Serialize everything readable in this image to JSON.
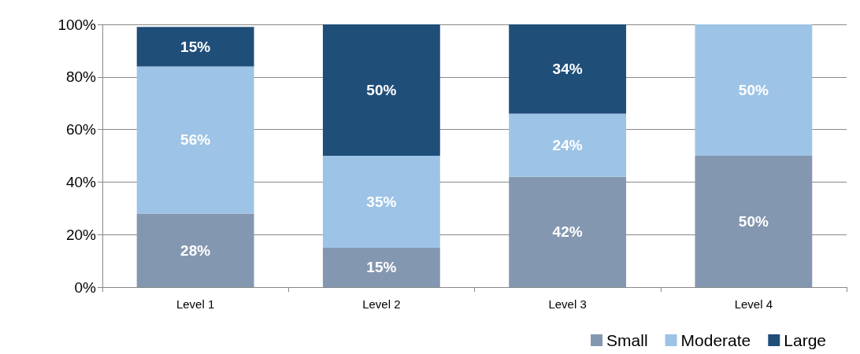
{
  "chart_data": {
    "type": "bar",
    "stacked": true,
    "categories": [
      "Level 1",
      "Level 2",
      "Level 3",
      "Level 4"
    ],
    "series": [
      {
        "name": "Small",
        "color": "#8497b0",
        "values": [
          28,
          15,
          42,
          50
        ],
        "value_labels": [
          "28%",
          "15%",
          "42%",
          "50%"
        ]
      },
      {
        "name": "Moderate",
        "color": "#9dc3e6",
        "values": [
          56,
          35,
          24,
          50
        ],
        "value_labels": [
          "56%",
          "35%",
          "24%",
          "50%"
        ]
      },
      {
        "name": "Large",
        "color": "#1f4e79",
        "values": [
          15,
          50,
          34,
          null
        ],
        "value_labels": [
          "15%",
          "50%",
          "34%",
          null
        ]
      }
    ],
    "ylim": [
      0,
      100
    ],
    "yticks": [
      {
        "value": 0,
        "label": "0%"
      },
      {
        "value": 20,
        "label": "20%"
      },
      {
        "value": 40,
        "label": "40%"
      },
      {
        "value": 60,
        "label": "60%"
      },
      {
        "value": 80,
        "label": "80%"
      },
      {
        "value": 100,
        "label": "100%"
      }
    ],
    "grid": "y",
    "legend": "bottom right"
  }
}
